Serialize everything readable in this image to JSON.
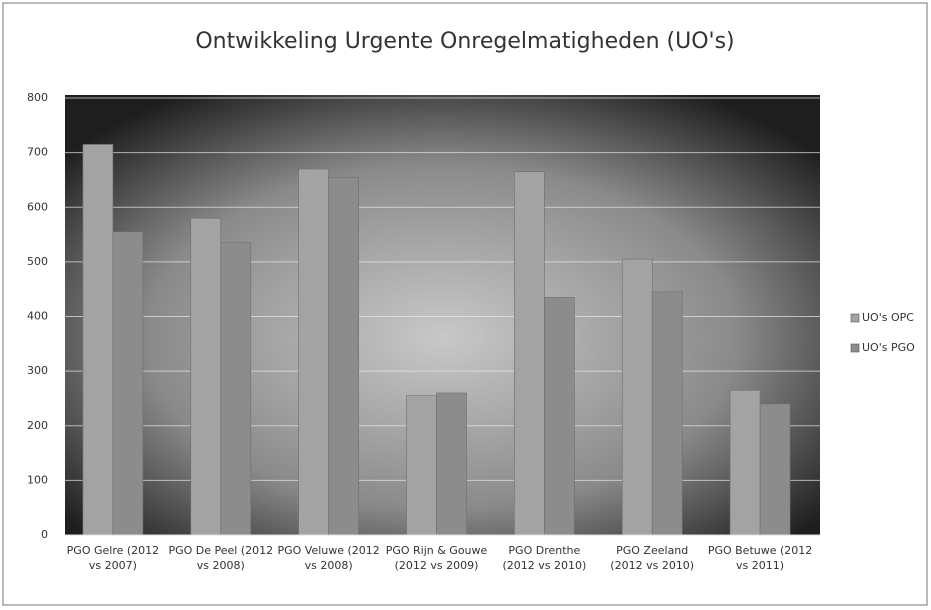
{
  "chart_data": {
    "type": "bar",
    "title": "Ontwikkeling Urgente Onregelmatigheden (UO's)",
    "categories": [
      "PGO Gelre (2012 vs 2007)",
      "PGO De Peel (2012 vs 2008)",
      "PGO Veluwe (2012 vs 2008)",
      "PGO Rijn & Gouwe (2012 vs 2009)",
      "PGO Drenthe (2012 vs 2010)",
      "PGO Zeeland (2012 vs 2010)",
      "PGO Betuwe (2012 vs 2011)"
    ],
    "series": [
      {
        "name": "UO's OPC",
        "color": "#a3a3a3",
        "values": [
          715,
          580,
          670,
          255,
          665,
          505,
          265
        ]
      },
      {
        "name": "UO's PGO",
        "color": "#8c8c8c",
        "values": [
          555,
          535,
          655,
          260,
          435,
          445,
          240
        ]
      }
    ],
    "ylim": [
      0,
      800
    ],
    "yticks": [
      0,
      100,
      200,
      300,
      400,
      500,
      600,
      700,
      800
    ],
    "grid": true,
    "legend": "right"
  }
}
